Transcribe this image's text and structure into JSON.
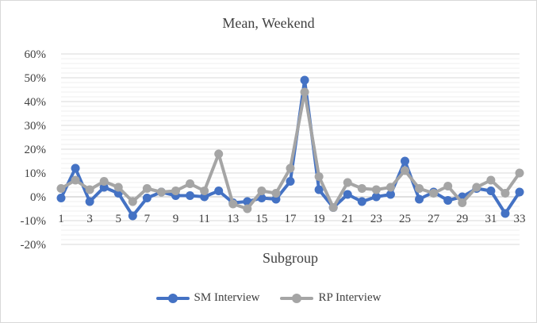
{
  "chart_data": {
    "type": "line",
    "title": "Mean, Weekend",
    "xlabel": "Subgroup",
    "ylabel": "",
    "ylim": [
      -20,
      60
    ],
    "y_ticks": [
      "-20%",
      "-10%",
      "0%",
      "10%",
      "20%",
      "30%",
      "40%",
      "50%",
      "60%"
    ],
    "x": [
      1,
      2,
      3,
      4,
      5,
      6,
      7,
      8,
      9,
      10,
      11,
      12,
      13,
      14,
      15,
      16,
      17,
      18,
      19,
      20,
      21,
      22,
      23,
      24,
      25,
      26,
      27,
      28,
      29,
      30,
      31,
      32,
      33
    ],
    "x_tick_labels": [
      "1",
      "3",
      "5",
      "7",
      "9",
      "11",
      "13",
      "15",
      "17",
      "19",
      "21",
      "23",
      "25",
      "27",
      "29",
      "31",
      "33"
    ],
    "series": [
      {
        "name": "SM Interview",
        "color": "#4472c4",
        "values": [
          -0.5,
          12,
          -2,
          4,
          1.5,
          -8,
          -0.5,
          2,
          0.5,
          0.5,
          0,
          2.5,
          -2.5,
          -2,
          -0.5,
          -1,
          6.5,
          49,
          3,
          -4.5,
          1,
          -2,
          0,
          1,
          15,
          -1,
          2,
          -1.5,
          0,
          3.5,
          2.5,
          -7,
          2
        ]
      },
      {
        "name": "RP Interview",
        "color": "#a5a5a5",
        "values": [
          3.5,
          7,
          3,
          6.5,
          4,
          -2,
          3.5,
          2,
          2.5,
          5.5,
          2.5,
          18,
          -3,
          -5,
          2.5,
          1.5,
          12,
          44,
          8.5,
          -4.5,
          6,
          3.5,
          3,
          4,
          11,
          3.5,
          1.5,
          4.5,
          -2.5,
          4,
          7,
          1.5,
          10
        ]
      }
    ],
    "grid": true,
    "legend": "bottom"
  }
}
